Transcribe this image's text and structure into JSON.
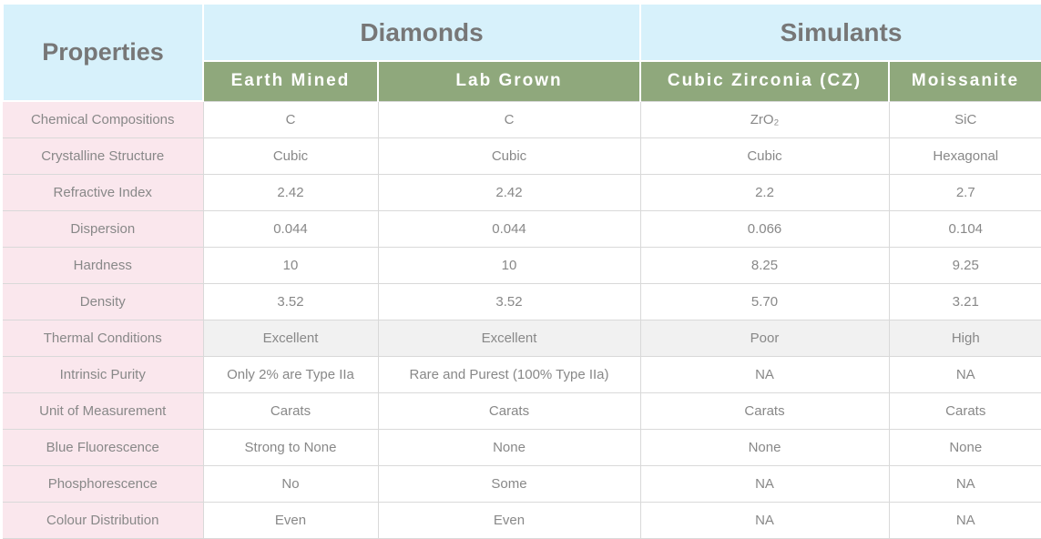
{
  "colors": {
    "blue_header": "#d7f1fb",
    "green_header": "#8fa87c",
    "pink_label": "#fae7ed",
    "shaded_row": "#f1f1f1",
    "border": "#d9d9d9",
    "header_text": "#777777",
    "body_text": "#888888"
  },
  "table": {
    "corner_label": "Properties",
    "groups": [
      {
        "label": "Diamonds"
      },
      {
        "label": "Simulants"
      }
    ],
    "columns": [
      "Earth Mined",
      "Lab Grown",
      "Cubic Zirconia (CZ)",
      "Moissanite"
    ],
    "rows": [
      {
        "label": "Chemical Compositions",
        "values": [
          "C",
          "C",
          "ZrO₂",
          "SiC"
        ],
        "shaded": false
      },
      {
        "label": "Crystalline Structure",
        "values": [
          "Cubic",
          "Cubic",
          "Cubic",
          "Hexagonal"
        ],
        "shaded": false
      },
      {
        "label": "Refractive Index",
        "values": [
          "2.42",
          "2.42",
          "2.2",
          "2.7"
        ],
        "shaded": false
      },
      {
        "label": "Dispersion",
        "values": [
          "0.044",
          "0.044",
          "0.066",
          "0.104"
        ],
        "shaded": false
      },
      {
        "label": "Hardness",
        "values": [
          "10",
          "10",
          "8.25",
          "9.25"
        ],
        "shaded": false
      },
      {
        "label": "Density",
        "values": [
          "3.52",
          "3.52",
          "5.70",
          "3.21"
        ],
        "shaded": false
      },
      {
        "label": "Thermal Conditions",
        "values": [
          "Excellent",
          "Excellent",
          "Poor",
          "High"
        ],
        "shaded": true
      },
      {
        "label": "Intrinsic Purity",
        "values": [
          "Only 2% are Type IIa",
          "Rare and Purest (100% Type IIa)",
          "NA",
          "NA"
        ],
        "shaded": false
      },
      {
        "label": "Unit of Measurement",
        "values": [
          "Carats",
          "Carats",
          "Carats",
          "Carats"
        ],
        "shaded": false
      },
      {
        "label": "Blue Fluorescence",
        "values": [
          "Strong to None",
          "None",
          "None",
          "None"
        ],
        "shaded": false
      },
      {
        "label": "Phosphorescence",
        "values": [
          "No",
          "Some",
          "NA",
          "NA"
        ],
        "shaded": false
      },
      {
        "label": "Colour Distribution",
        "values": [
          "Even",
          "Even",
          "NA",
          "NA"
        ],
        "shaded": false
      }
    ]
  }
}
